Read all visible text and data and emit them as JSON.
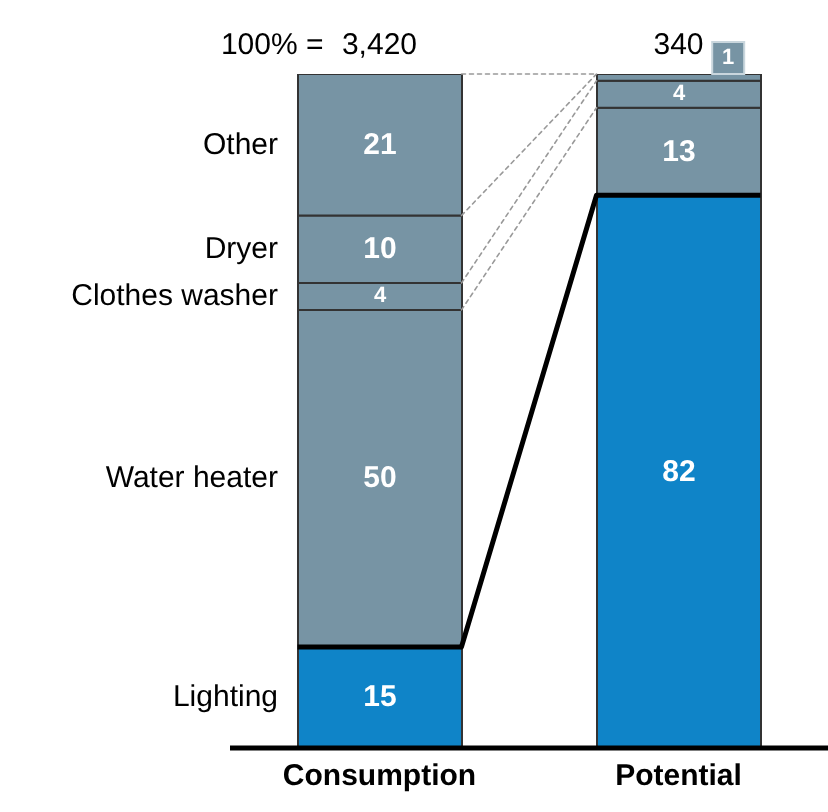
{
  "chart_data": {
    "type": "bar",
    "stacked": true,
    "categories": [
      "Consumption",
      "Potential"
    ],
    "series": [
      {
        "name": "Lighting",
        "color": "#0f84c8",
        "values": [
          15,
          82
        ],
        "value_labels": [
          "15",
          "82"
        ]
      },
      {
        "name": "Water heater",
        "color": "#7794a4",
        "values": [
          50,
          13
        ],
        "value_labels": [
          "50",
          "13"
        ]
      },
      {
        "name": "Clothes washer",
        "color": "#7794a4",
        "values": [
          4,
          4
        ],
        "value_labels": [
          "4",
          "4"
        ]
      },
      {
        "name": "Dryer",
        "color": "#7794a4",
        "values": [
          10,
          1
        ],
        "value_labels": [
          "10",
          "1"
        ]
      },
      {
        "name": "Other",
        "color": "#7794a4",
        "values": [
          21,
          0
        ],
        "value_labels": [
          "21",
          null
        ]
      }
    ],
    "ylim": [
      0,
      100
    ],
    "tick_labels": "x",
    "legend": false,
    "grid": false,
    "annotations": [
      "100% =",
      "3,420",
      "340"
    ]
  }
}
